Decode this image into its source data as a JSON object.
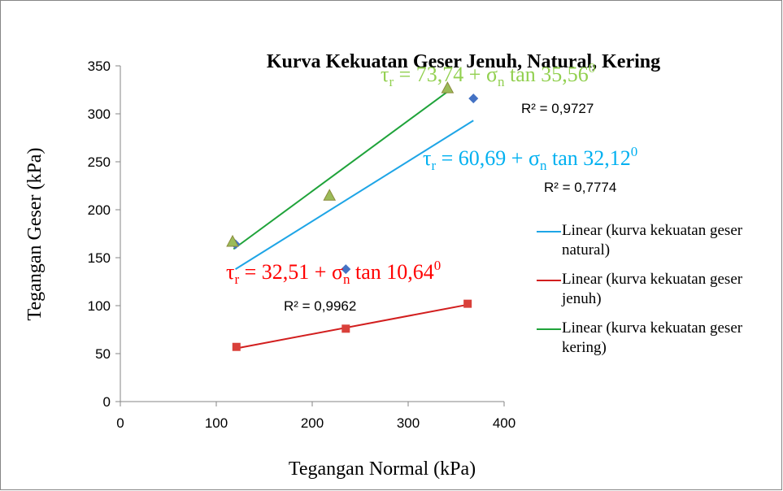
{
  "chart_data": {
    "type": "scatter",
    "title": "Kurva Kekuatan Geser Jenuh, Natural, Kering",
    "x_label": "Tegangan Normal (kPa)",
    "y_label": "Tegangan Geser (kPa)",
    "xlim": [
      0,
      400
    ],
    "xticks": [
      0,
      100,
      200,
      300,
      400
    ],
    "ylim": [
      0,
      350
    ],
    "yticks": [
      0,
      50,
      100,
      150,
      200,
      250,
      300,
      350
    ],
    "series": [
      {
        "name": "Linear (kurva kekuatan geser natural)",
        "color": "#1ea5e6",
        "marker": "diamond",
        "marker_color": "#4472c4",
        "x": [
          120,
          235,
          368
        ],
        "values": [
          164,
          138,
          316
        ],
        "trend_x": [
          120,
          368
        ],
        "trend_values": [
          138,
          293
        ]
      },
      {
        "name": "Linear (kurva kekuatan geser jenuh)",
        "color": "#d21e1e",
        "marker": "square",
        "marker_color": "#d9403a",
        "x": [
          121,
          235,
          362
        ],
        "values": [
          57,
          76,
          102
        ],
        "trend_x": [
          121,
          362
        ],
        "trend_values": [
          55.5,
          101
        ]
      },
      {
        "name": "Linear (kurva kekuatan geser kering)",
        "color": "#1fa33a",
        "marker": "triangle",
        "marker_color": "#9bbb59",
        "x": [
          117,
          218,
          341
        ],
        "values": [
          167,
          215,
          327
        ],
        "trend_x": [
          118,
          341
        ],
        "trend_values": [
          159,
          323
        ]
      }
    ],
    "annotations": [
      {
        "color": "#92d050",
        "parts": [
          {
            "text": "τ"
          },
          {
            "text": "r",
            "sub": true
          },
          {
            "text": " = 73,74 + σ"
          },
          {
            "text": "n",
            "sub": true
          },
          {
            "text": " tan 35,56"
          },
          {
            "text": "0",
            "sup": true
          }
        ]
      },
      {
        "color": "#00b0f0",
        "parts": [
          {
            "text": "τ"
          },
          {
            "text": "r",
            "sub": true
          },
          {
            "text": " = 60,69 + σ"
          },
          {
            "text": "n",
            "sub": true
          },
          {
            "text": " tan 32,12"
          },
          {
            "text": "0",
            "sup": true
          }
        ]
      },
      {
        "color": "#ff0000",
        "parts": [
          {
            "text": "τ"
          },
          {
            "text": "r",
            "sub": true
          },
          {
            "text": " = 32,51 + σ"
          },
          {
            "text": "n",
            "sub": true
          },
          {
            "text": " tan 10,64"
          },
          {
            "text": "0",
            "sup": true
          }
        ]
      }
    ],
    "r_squared": [
      "R² = 0,9727",
      "R² = 0,7774",
      "R² = 0,9962"
    ]
  }
}
